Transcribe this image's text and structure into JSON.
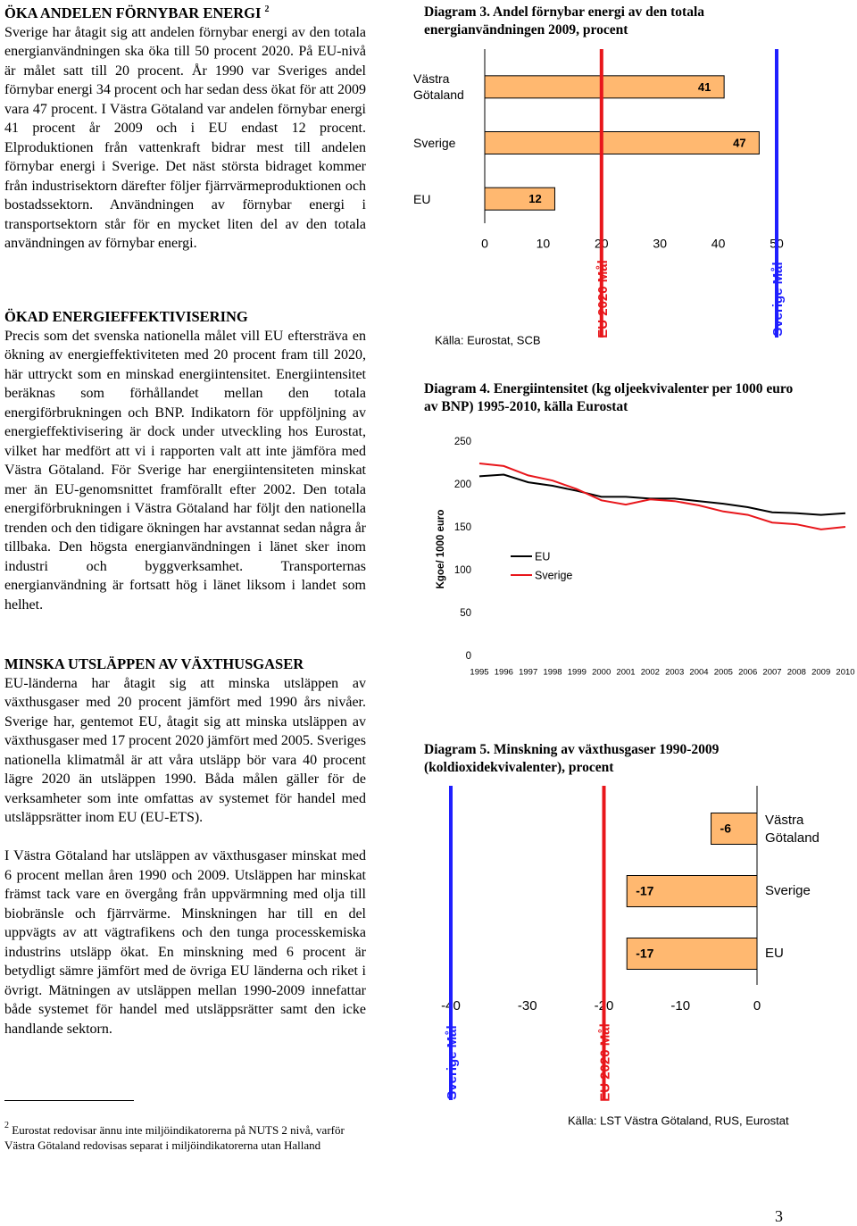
{
  "sections": [
    {
      "heading": "ÖKA ANDELEN FÖRNYBAR ENERGI",
      "footnote_ref": "2",
      "paragraphs": [
        "Sverige har åtagit sig att andelen förnybar energi av den totala energianvändningen ska öka till 50 procent 2020. På EU-nivå är målet satt till 20 procent. År 1990 var Sveriges andel förnybar energi 34 procent och har sedan dess ökat för att 2009 vara 47 procent. I Västra Götaland var andelen förnybar energi 41 procent år 2009 och i EU endast 12 procent. Elproduktionen från vattenkraft bidrar mest till andelen förnybar energi i Sverige. Det näst största bidraget kommer från industrisektorn därefter följer fjärrvärmeproduktionen och bostadssektorn. Användningen av förnybar energi i transportsektorn står för en mycket liten del av den totala användningen av förnybar energi."
      ]
    },
    {
      "heading": "ÖKAD ENERGIEFFEKTIVISERING",
      "paragraphs": [
        "Precis som det svenska nationella målet vill EU eftersträva en ökning av energieffektiviteten med 20 procent fram till 2020, här uttryckt som en minskad energiintensitet. Energiintensitet beräknas som förhållandet mellan den totala energiförbrukningen och BNP. Indikatorn för uppföljning av energieffektivisering är dock under utveckling hos Eurostat, vilket har medfört att vi i rapporten valt att inte jämföra med Västra Götaland. För Sverige har energiintensiteten minskat mer än EU-genomsnittet framförallt efter 2002. Den totala energiförbrukningen i Västra Götaland har följt den nationella trenden och den tidigare ökningen har avstannat sedan några år tillbaka. Den högsta energianvändningen i länet sker inom industri och byggverksamhet. Transporternas energianvändning är fortsatt hög i länet liksom i landet som helhet."
      ]
    },
    {
      "heading": "MINSKA UTSLÄPPEN AV VÄXTHUSGASER",
      "paragraphs": [
        "EU-länderna har åtagit sig att minska utsläppen av växthusgaser med 20 procent jämfört med 1990 års nivåer. Sverige har, gentemot EU, åtagit sig att minska utsläppen av växthusgaser med 17 procent 2020 jämfört med 2005. Sveriges nationella klimatmål är att våra utsläpp bör vara 40 procent lägre 2020 än utsläppen 1990. Båda målen gäller för de verksamheter som inte omfattas av systemet för handel med utsläppsrätter inom EU (EU-ETS).",
        "I Västra Götaland har utsläppen av växthusgaser minskat med 6 procent mellan åren 1990 och 2009. Utsläppen har minskat främst tack vare en övergång från uppvärmning med olja till biobränsle och fjärrvärme. Minskningen har till en del uppvägts av att vägtrafikens och den tunga processkemiska industrins utsläpp ökat. En minskning med 6 procent är betydligt sämre jämfört med de övriga EU länderna och riket i övrigt. Mätningen av utsläppen mellan 1990-2009 innefattar både systemet för handel med utsläppsrätter samt den icke handlande sektorn."
      ]
    }
  ],
  "footnote": {
    "number": "2",
    "text": "Eurostat redovisar ännu inte miljöindikatorerna på NUTS 2 nivå, varför Västra Götaland redovisas separat i miljöindikatorerna utan Halland"
  },
  "page_number": "3",
  "chart_data": [
    {
      "type": "bar",
      "orientation": "horizontal",
      "title": "Diagram 3. Andel förnybar energi av den totala energianvändningen 2009, procent",
      "categories": [
        "Västra Götaland",
        "Sverige",
        "EU"
      ],
      "values": [
        41,
        47,
        12
      ],
      "color": "#ffb870",
      "xlim": [
        0,
        50
      ],
      "xticks": [
        0,
        10,
        20,
        30,
        40,
        50
      ],
      "reference_lines": [
        {
          "value": 20,
          "label": "EU 2020 Mål",
          "color": "#e8161b"
        },
        {
          "value": 50,
          "label": "Sverige Mål",
          "color": "#1f1fff"
        }
      ],
      "source": "Källa: Eurostat, SCB"
    },
    {
      "type": "line",
      "title": "Diagram 4. Energiintensitet (kg oljeekvivalenter per 1000 euro av BNP) 1995-2010, källa Eurostat",
      "x": [
        1995,
        1996,
        1997,
        1998,
        1999,
        2000,
        2001,
        2002,
        2003,
        2004,
        2005,
        2006,
        2007,
        2008,
        2009,
        2010
      ],
      "xlim": [
        1995,
        2010
      ],
      "ylim": [
        0,
        250
      ],
      "yticks": [
        0,
        50,
        100,
        150,
        200,
        250
      ],
      "ylabel": "Kgoe/ 1000 euro",
      "series": [
        {
          "name": "EU",
          "color": "#000000",
          "values": [
            210,
            212,
            203,
            199,
            193,
            186,
            186,
            184,
            184,
            181,
            178,
            174,
            168,
            167,
            165,
            167
          ]
        },
        {
          "name": "Sverige",
          "color": "#e8161b",
          "values": [
            225,
            222,
            211,
            205,
            195,
            182,
            177,
            183,
            181,
            176,
            169,
            165,
            156,
            154,
            148,
            151
          ]
        }
      ]
    },
    {
      "type": "bar",
      "orientation": "horizontal",
      "title": "Diagram 5. Minskning av växthusgaser 1990-2009 (koldioxidekvivalenter), procent",
      "categories": [
        "Västra Götaland",
        "Sverige",
        "EU"
      ],
      "values": [
        -6,
        -17,
        -17
      ],
      "color": "#ffb870",
      "xlim": [
        -40,
        0
      ],
      "xticks": [
        -40,
        -30,
        -20,
        -10,
        0
      ],
      "reference_lines": [
        {
          "value": -40,
          "label": "Sverige Mål",
          "color": "#1f1fff"
        },
        {
          "value": -20,
          "label": "EU 2020 Mål",
          "color": "#e8161b"
        }
      ],
      "source": "Källa: LST Västra Götaland, RUS, Eurostat"
    }
  ]
}
